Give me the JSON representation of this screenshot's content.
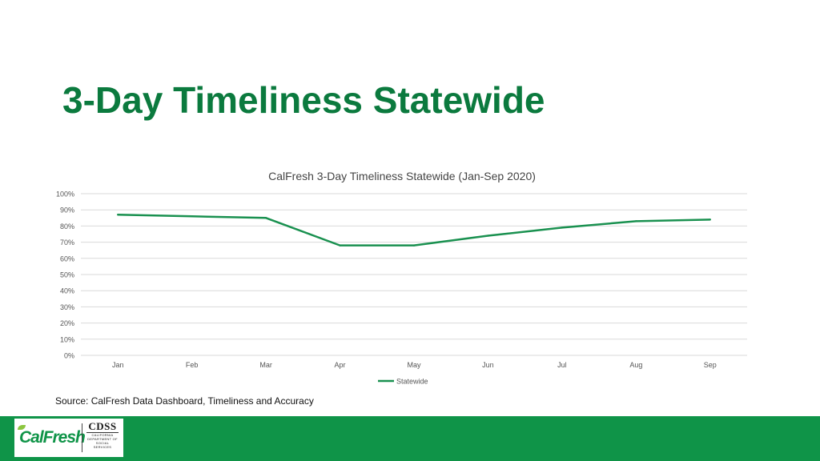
{
  "slide": {
    "title": "3-Day Timeliness Statewide",
    "source": "Source: CalFresh Data Dashboard, Timeliness and Accuracy"
  },
  "footer": {
    "calfresh_logo_text": "CalFresh",
    "cdss_logo_text": "CDSS",
    "cdss_sub_lines": [
      "California",
      "Department of",
      "Social Services"
    ]
  },
  "colors": {
    "accent": "#0b7a3e",
    "footer": "#0f9448",
    "series": "#1a9150",
    "grid": "#d9d9d9"
  },
  "chart_data": {
    "type": "line",
    "title": "CalFresh 3-Day Timeliness Statewide (Jan-Sep 2020)",
    "categories": [
      "Jan",
      "Feb",
      "Mar",
      "Apr",
      "May",
      "Jun",
      "Jul",
      "Aug",
      "Sep"
    ],
    "series": [
      {
        "name": "Statewide",
        "values": [
          0.87,
          0.86,
          0.85,
          0.68,
          0.68,
          0.74,
          0.79,
          0.83,
          0.84
        ]
      }
    ],
    "yticks": [
      "0%",
      "10%",
      "20%",
      "30%",
      "40%",
      "50%",
      "60%",
      "70%",
      "80%",
      "90%",
      "100%"
    ],
    "ylim": [
      0,
      1
    ],
    "xlabel": "",
    "ylabel": "",
    "grid": true,
    "legend": "bottom"
  }
}
